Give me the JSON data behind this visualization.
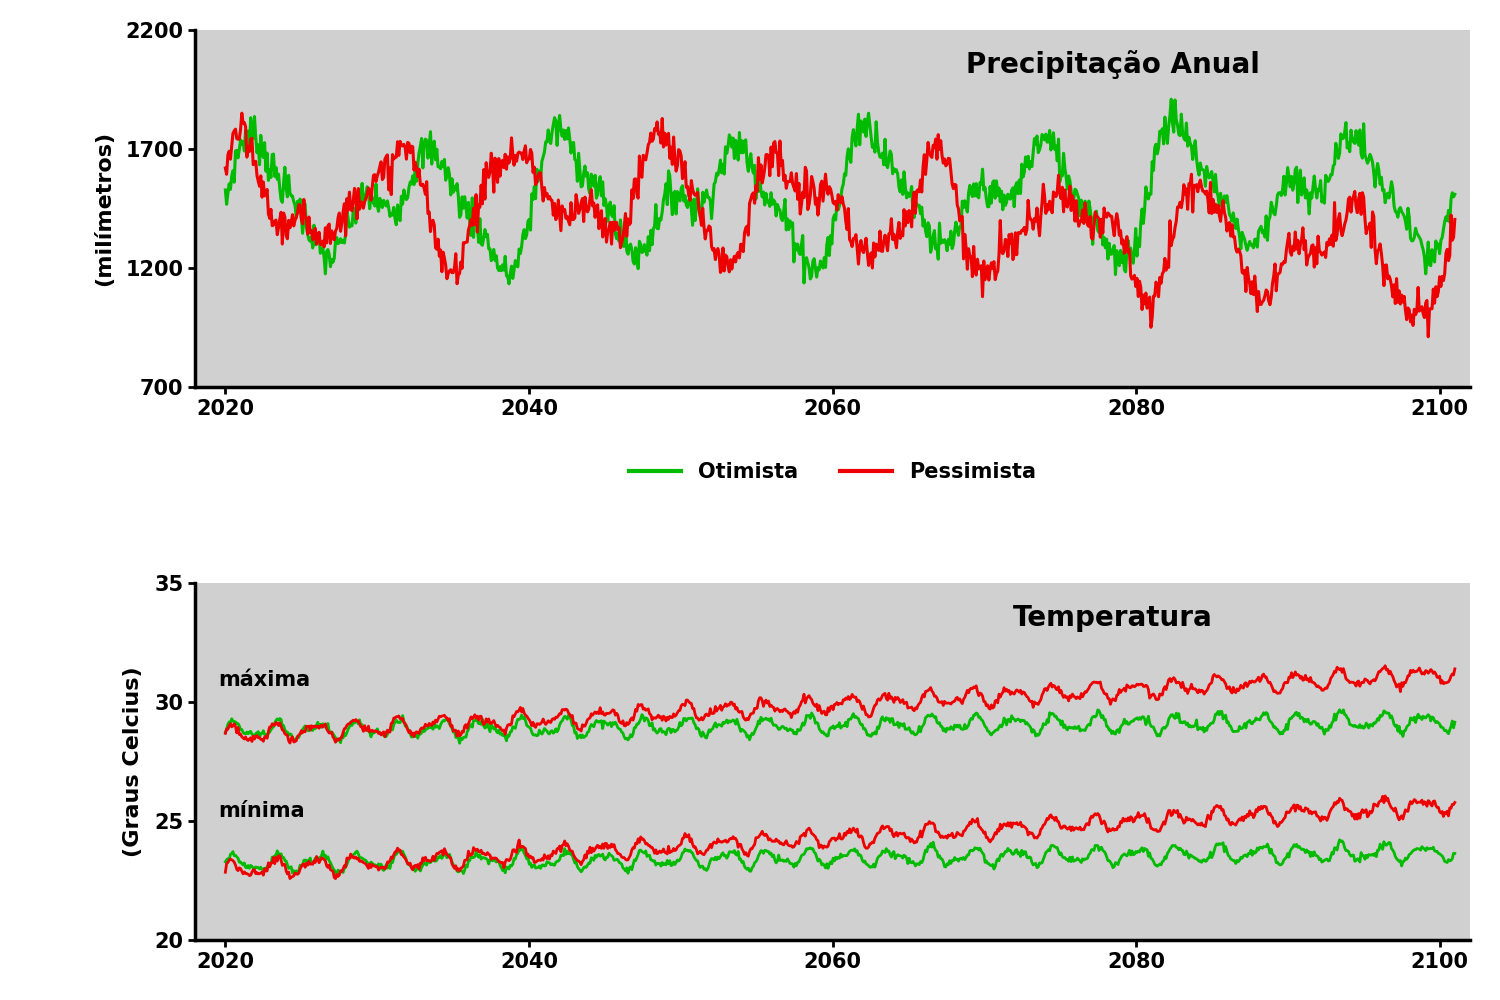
{
  "title_precip": "Precipitação Anual",
  "title_temp": "Temperatura",
  "ylabel_precip": "(milímetros)",
  "ylabel_temp": "(Graus Celcius)",
  "xlim": [
    2018,
    2102
  ],
  "xticks": [
    2020,
    2040,
    2060,
    2080,
    2100
  ],
  "ylim_precip": [
    700,
    2200
  ],
  "yticks_precip": [
    700,
    1200,
    1700,
    2200
  ],
  "ylim_temp": [
    20,
    35
  ],
  "yticks_temp": [
    20,
    25,
    30,
    35
  ],
  "legend_entries": [
    "Otimista",
    "Pessimista"
  ],
  "color_otimista": "#00bb00",
  "color_pessimista": "#ee0000",
  "bg_color": "#d0d0d0",
  "annotation_maxima": "máxima",
  "annotation_minima": "mínima",
  "seed": 7
}
